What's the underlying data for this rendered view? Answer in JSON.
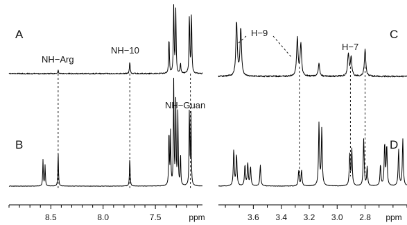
{
  "panels": {
    "A": "A",
    "B": "B",
    "C": "C",
    "D": "D"
  },
  "peak_labels": {
    "nh_arg": "NH−Arg",
    "nh_10": "NH−10",
    "nh_guan": "NH−Guan",
    "h_9": "H−9",
    "h_7": "H−7"
  },
  "chart_data": [
    {
      "type": "line",
      "title": "",
      "xlabel": "ppm",
      "x_reversed": true,
      "xlim": [
        8.9,
        7.05
      ],
      "xticks": [
        "8.5",
        "8.0",
        "7.5"
      ],
      "xtick_values": [
        8.5,
        8.0,
        7.5
      ],
      "minor_tick_step": 0.1,
      "series": [
        {
          "name": "A",
          "peaks": [
            {
              "ppm": 8.43,
              "height": 0.05
            },
            {
              "ppm": 7.745,
              "height": 0.18
            },
            {
              "ppm": 7.37,
              "height": 0.55
            },
            {
              "ppm": 7.325,
              "height": 1.0
            },
            {
              "ppm": 7.305,
              "height": 0.95
            },
            {
              "ppm": 7.26,
              "height": 0.15
            },
            {
              "ppm": 7.175,
              "height": 0.88
            },
            {
              "ppm": 7.155,
              "height": 0.9
            }
          ]
        },
        {
          "name": "B",
          "peaks": [
            {
              "ppm": 8.575,
              "height": 0.25
            },
            {
              "ppm": 8.555,
              "height": 0.2
            },
            {
              "ppm": 8.43,
              "height": 0.32
            },
            {
              "ppm": 7.745,
              "height": 0.28
            },
            {
              "ppm": 7.37,
              "height": 0.55
            },
            {
              "ppm": 7.355,
              "height": 0.5
            },
            {
              "ppm": 7.325,
              "height": 1.0
            },
            {
              "ppm": 7.305,
              "height": 0.8
            },
            {
              "ppm": 7.285,
              "height": 0.7
            },
            {
              "ppm": 7.26,
              "height": 0.3
            },
            {
              "ppm": 7.175,
              "height": 0.75
            },
            {
              "ppm": 7.16,
              "height": 0.7
            }
          ]
        }
      ],
      "guides_ppm": [
        8.43,
        7.745,
        7.165
      ]
    },
    {
      "type": "line",
      "title": "",
      "xlabel": "ppm",
      "x_reversed": true,
      "xlim": [
        3.85,
        2.5
      ],
      "xticks": [
        "3.6",
        "3.4",
        "3.2",
        "3.0",
        "2.8"
      ],
      "xtick_values": [
        3.6,
        3.4,
        3.2,
        3.0,
        2.8
      ],
      "minor_tick_step": 0.1,
      "series": [
        {
          "name": "C",
          "peaks": [
            {
              "ppm": 3.72,
              "height": 0.85
            },
            {
              "ppm": 3.69,
              "height": 0.75
            },
            {
              "ppm": 3.285,
              "height": 0.6
            },
            {
              "ppm": 3.26,
              "height": 0.5
            },
            {
              "ppm": 3.13,
              "height": 0.2
            },
            {
              "ppm": 2.92,
              "height": 0.35
            },
            {
              "ppm": 2.9,
              "height": 0.3
            },
            {
              "ppm": 2.8,
              "height": 0.42
            }
          ]
        },
        {
          "name": "D",
          "peaks": [
            {
              "ppm": 3.74,
              "height": 0.35
            },
            {
              "ppm": 3.72,
              "height": 0.3
            },
            {
              "ppm": 3.66,
              "height": 0.2
            },
            {
              "ppm": 3.64,
              "height": 0.22
            },
            {
              "ppm": 3.62,
              "height": 0.18
            },
            {
              "ppm": 3.55,
              "height": 0.2
            },
            {
              "ppm": 3.275,
              "height": 0.15
            },
            {
              "ppm": 3.255,
              "height": 0.15
            },
            {
              "ppm": 3.13,
              "height": 0.6
            },
            {
              "ppm": 3.11,
              "height": 0.55
            },
            {
              "ppm": 2.91,
              "height": 0.3
            },
            {
              "ppm": 2.895,
              "height": 0.35
            },
            {
              "ppm": 2.81,
              "height": 0.45
            },
            {
              "ppm": 2.785,
              "height": 0.18
            },
            {
              "ppm": 2.69,
              "height": 0.2
            },
            {
              "ppm": 2.66,
              "height": 0.4
            },
            {
              "ppm": 2.645,
              "height": 0.38
            },
            {
              "ppm": 2.56,
              "height": 0.35
            },
            {
              "ppm": 2.53,
              "height": 0.45
            }
          ]
        }
      ],
      "guides_ppm": [
        3.27,
        2.905,
        2.8
      ]
    }
  ]
}
